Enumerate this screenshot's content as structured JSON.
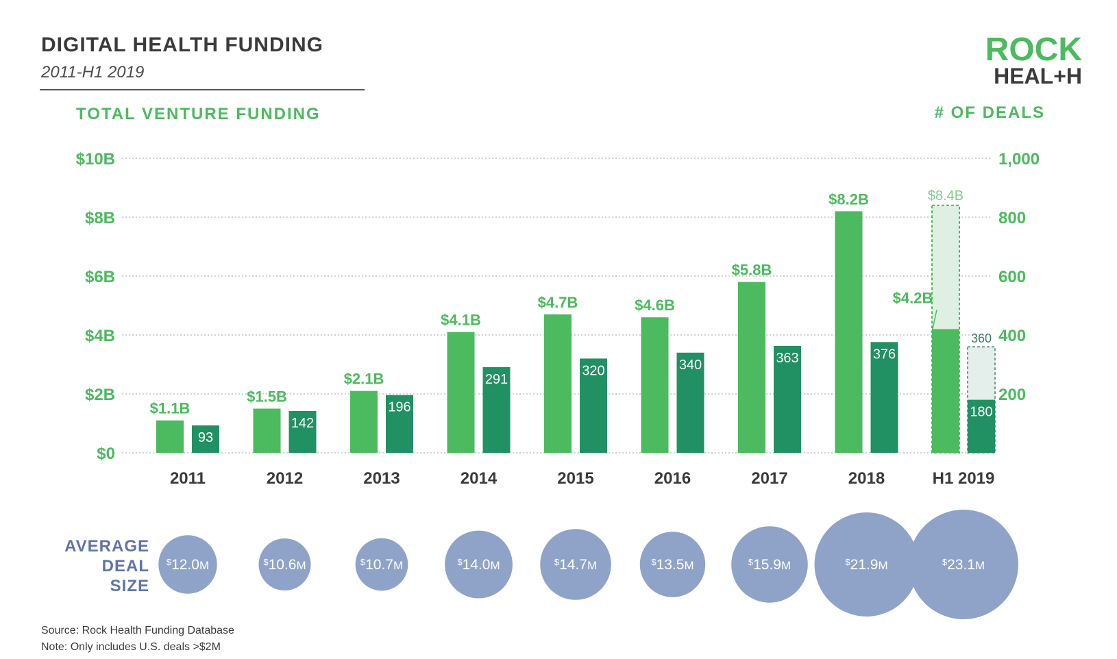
{
  "header": {
    "title": "DIGITAL HEALTH FUNDING",
    "subtitle": "2011-H1 2019",
    "logo_line1": "ROCK",
    "logo_line2": "HEAL+H"
  },
  "colors": {
    "funding": "#4cba5e",
    "deals": "#219063",
    "projection_fill": "#dff0e2",
    "projection_stroke": "#4cba5e",
    "bubble": "#8fa3c9",
    "axis_green": "#4cba5e",
    "bubble_label": "#5e74a8",
    "title": "#3a3a3a"
  },
  "footer": {
    "source": "Source: Rock Health Funding Database",
    "note": "Note: Only includes U.S. deals >$2M"
  },
  "chart_data": {
    "type": "bar",
    "categories": [
      "2011",
      "2012",
      "2013",
      "2014",
      "2015",
      "2016",
      "2017",
      "2018",
      "H1 2019"
    ],
    "left_axis": {
      "label": "TOTAL VENTURE FUNDING",
      "ticks": [
        "$0",
        "$2B",
        "$4B",
        "$6B",
        "$8B",
        "$10B"
      ],
      "range": [
        0,
        10
      ],
      "unit": "$B"
    },
    "right_axis": {
      "label": "# OF DEALS",
      "ticks": [
        "200",
        "400",
        "600",
        "800",
        "1,000"
      ],
      "range": [
        0,
        1000
      ]
    },
    "grid": "dotted horizontal",
    "series": [
      {
        "name": "TOTAL VENTURE FUNDING",
        "values": [
          1.1,
          1.5,
          2.1,
          4.1,
          4.7,
          4.6,
          5.8,
          8.2,
          4.2
        ],
        "labels": [
          "$1.1B",
          "$1.5B",
          "$2.1B",
          "$4.1B",
          "$4.7B",
          "$4.6B",
          "$5.8B",
          "$8.2B",
          "$4.2B"
        ]
      },
      {
        "name": "# OF DEALS",
        "values": [
          93,
          142,
          196,
          291,
          320,
          340,
          363,
          376,
          180
        ],
        "labels": [
          "93",
          "142",
          "196",
          "291",
          "320",
          "340",
          "363",
          "376",
          "180"
        ]
      }
    ],
    "projection": {
      "category": "H1 2019",
      "funding_value": 8.4,
      "funding_label": "$8.4B",
      "deals_value": 360,
      "deals_label": "360"
    },
    "average_deal_size": {
      "label_lines": [
        "AVERAGE",
        "DEAL",
        "SIZE"
      ],
      "values": [
        12.0,
        10.6,
        10.7,
        14.0,
        14.7,
        13.5,
        15.9,
        21.9,
        23.1
      ],
      "labels": [
        "12.0",
        "10.6",
        "10.7",
        "14.0",
        "14.7",
        "13.5",
        "15.9",
        "21.9",
        "23.1"
      ],
      "prefix": "$",
      "suffix": "M"
    }
  }
}
